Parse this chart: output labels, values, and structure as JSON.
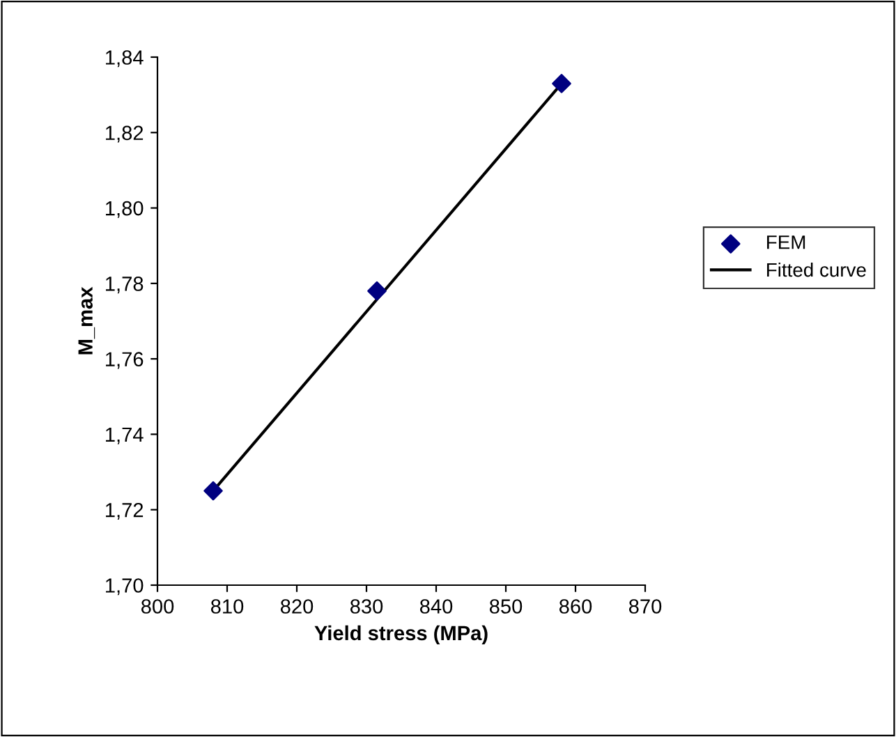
{
  "chart_data": {
    "type": "scatter",
    "xlabel": "Yield stress (MPa)",
    "ylabel": "M_max",
    "series": [
      {
        "name": "FEM",
        "color": "#000080",
        "marker": "diamond",
        "x": [
          808,
          831.5,
          858
        ],
        "values": [
          1.725,
          1.778,
          1.833
        ]
      },
      {
        "name": "Fitted curve",
        "type": "line",
        "color": "#000000",
        "marker": "none",
        "line_style": "solid",
        "x": [
          808,
          858
        ],
        "values": [
          1.725,
          1.833
        ]
      }
    ],
    "xlim": [
      800,
      870
    ],
    "xticks": [
      800,
      810,
      820,
      830,
      840,
      850,
      860,
      870
    ],
    "ylim": [
      1.7,
      1.84
    ],
    "yticks": [
      {
        "value": 1.7,
        "label": "1,70"
      },
      {
        "value": 1.72,
        "label": "1,72"
      },
      {
        "value": 1.74,
        "label": "1,74"
      },
      {
        "value": 1.76,
        "label": "1,76"
      },
      {
        "value": 1.78,
        "label": "1,78"
      },
      {
        "value": 1.8,
        "label": "1,80"
      },
      {
        "value": 1.82,
        "label": "1,82"
      },
      {
        "value": 1.84,
        "label": "1,84"
      }
    ],
    "grid": false,
    "legend": "right"
  }
}
